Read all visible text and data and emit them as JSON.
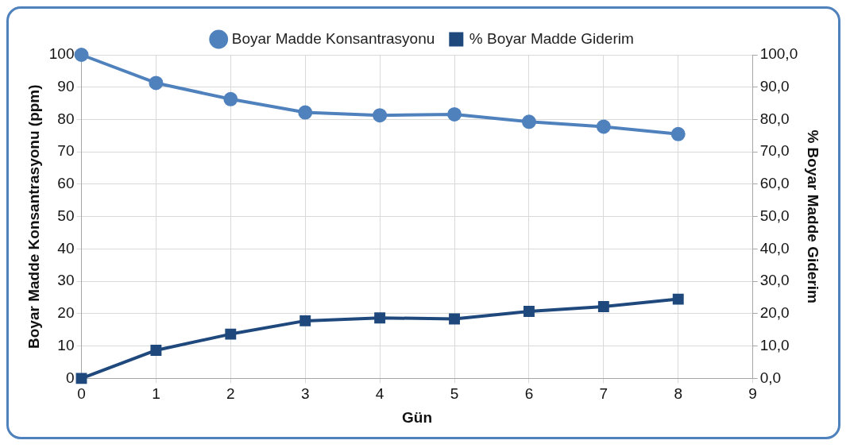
{
  "chart_data": {
    "type": "line",
    "xlabel": "Gün",
    "ylabel": "Boyar Madde Konsantrasyonu (ppm)",
    "y2label": "% Boyar Madde Giderim",
    "x": [
      0,
      1,
      2,
      3,
      4,
      5,
      6,
      7,
      8
    ],
    "series": [
      {
        "name": "Boyar Madde Konsantrasyonu",
        "color": "#4f81bd",
        "marker": "circle",
        "values": [
          100,
          91.3,
          86.3,
          82.2,
          81.3,
          81.6,
          79.3,
          77.8,
          75.5
        ]
      },
      {
        "name": "% Boyar Madde Giderim",
        "color": "#1f497d",
        "marker": "square",
        "axis": "y2",
        "values": [
          0,
          8.7,
          13.7,
          17.8,
          18.7,
          18.4,
          20.7,
          22.2,
          24.5
        ]
      }
    ],
    "xlim": [
      0,
      9
    ],
    "xticks": [
      0,
      1,
      2,
      3,
      4,
      5,
      6,
      7,
      8,
      9
    ],
    "ylim": [
      0,
      100
    ],
    "yticks": [
      0,
      10,
      20,
      30,
      40,
      50,
      60,
      70,
      80,
      90,
      100
    ],
    "y2lim": [
      0,
      100
    ],
    "y2ticks": [
      {
        "value": 0,
        "label": "0,0"
      },
      {
        "value": 10,
        "label": "10,0"
      },
      {
        "value": 20,
        "label": "20,0"
      },
      {
        "value": 30,
        "label": "30,0"
      },
      {
        "value": 40,
        "label": "40,0"
      },
      {
        "value": 50,
        "label": "50,0"
      },
      {
        "value": 60,
        "label": "60,0"
      },
      {
        "value": 70,
        "label": "70,0"
      },
      {
        "value": 80,
        "label": "80,0"
      },
      {
        "value": 90,
        "label": "90,0"
      },
      {
        "value": 100,
        "label": "100,0"
      }
    ],
    "grid": true,
    "legend": "top",
    "line_style": "solid"
  }
}
